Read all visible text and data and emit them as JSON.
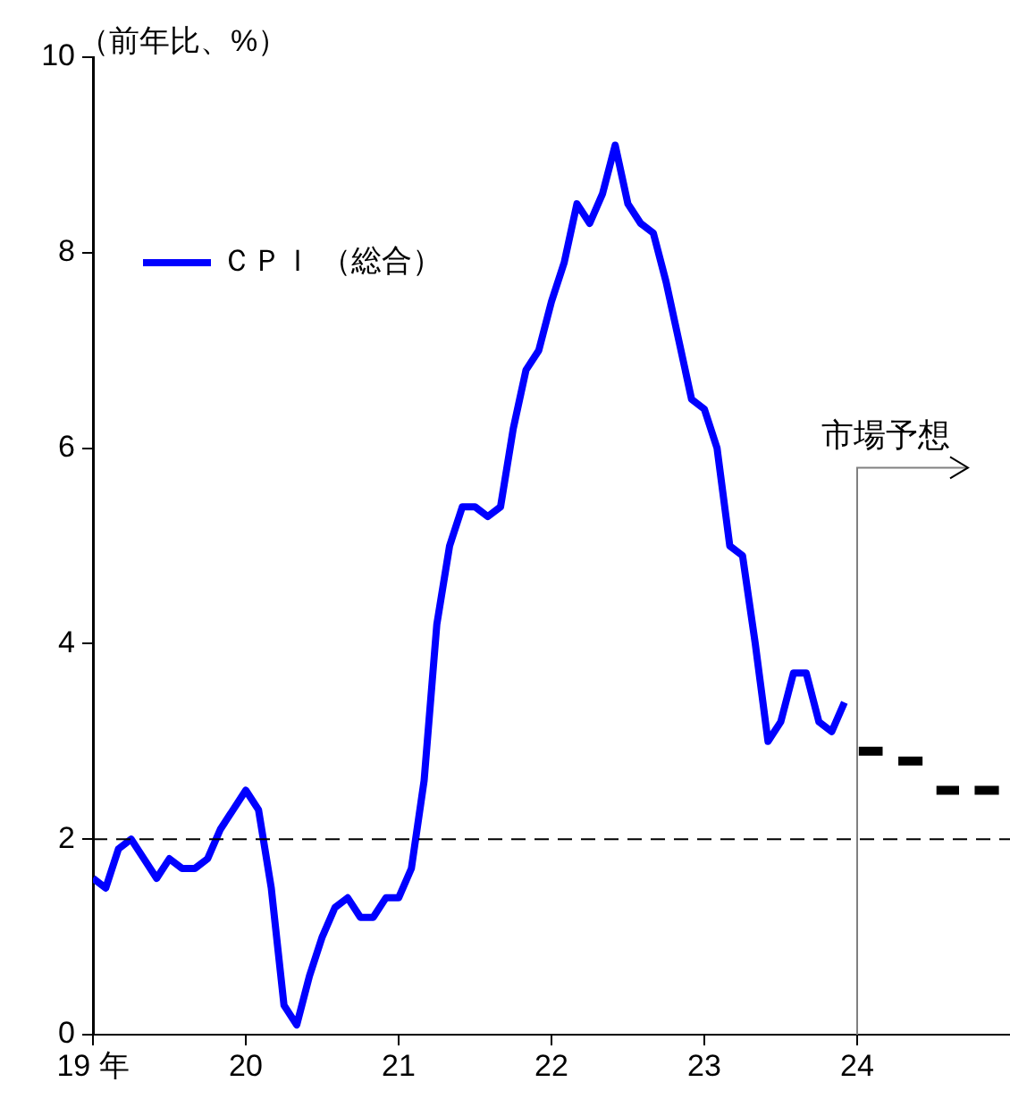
{
  "chart_data": {
    "type": "line",
    "ylabel": "（前年比、%）",
    "legend": "top left",
    "grid": false,
    "marker": "none",
    "line_style": "solid",
    "x": [
      "2019-01",
      "2019-02",
      "2019-03",
      "2019-04",
      "2019-05",
      "2019-06",
      "2019-07",
      "2019-08",
      "2019-09",
      "2019-10",
      "2019-11",
      "2019-12",
      "2020-01",
      "2020-02",
      "2020-03",
      "2020-04",
      "2020-05",
      "2020-06",
      "2020-07",
      "2020-08",
      "2020-09",
      "2020-10",
      "2020-11",
      "2020-12",
      "2021-01",
      "2021-02",
      "2021-03",
      "2021-04",
      "2021-05",
      "2021-06",
      "2021-07",
      "2021-08",
      "2021-09",
      "2021-10",
      "2021-11",
      "2021-12",
      "2022-01",
      "2022-02",
      "2022-03",
      "2022-04",
      "2022-05",
      "2022-06",
      "2022-07",
      "2022-08",
      "2022-09",
      "2022-10",
      "2022-11",
      "2022-12",
      "2023-01",
      "2023-02",
      "2023-03",
      "2023-04",
      "2023-05",
      "2023-06",
      "2023-07",
      "2023-08",
      "2023-09",
      "2023-10",
      "2023-11",
      "2023-12"
    ],
    "series": [
      {
        "name": "ＣＰＩ （総合）",
        "color": "#0000ff",
        "values": [
          1.6,
          1.5,
          1.9,
          2.0,
          1.8,
          1.6,
          1.8,
          1.7,
          1.7,
          1.8,
          2.1,
          2.3,
          2.5,
          2.3,
          1.5,
          0.3,
          0.1,
          0.6,
          1.0,
          1.3,
          1.4,
          1.2,
          1.2,
          1.4,
          1.4,
          1.7,
          2.6,
          4.2,
          5.0,
          5.4,
          5.4,
          5.3,
          5.4,
          6.2,
          6.8,
          7.0,
          7.5,
          7.9,
          8.5,
          8.3,
          8.6,
          9.1,
          8.5,
          8.3,
          8.2,
          7.7,
          7.1,
          6.5,
          6.4,
          6.0,
          5.0,
          4.9,
          4.0,
          3.0,
          3.2,
          3.7,
          3.7,
          3.2,
          3.1,
          3.4
        ]
      },
      {
        "type": "line",
        "color": "#000000",
        "x": [
          "2024-01-05",
          "2024-03-01",
          "2024-03-20",
          "2024-04-08",
          "2024-06-05",
          "2024-06-20",
          "2024-07-08",
          "2024-09-01",
          "2024-09-20",
          "2024-10-08",
          "2024-12-05"
        ],
        "values": [
          2.9,
          2.9,
          null,
          2.8,
          2.8,
          null,
          2.5,
          2.5,
          null,
          2.5,
          2.5
        ]
      }
    ],
    "xlim": [
      "2019-01",
      "2025-01"
    ],
    "xticks": [
      {
        "value": "2019-01",
        "label": "19 年"
      },
      {
        "value": "2020-01",
        "label": "20"
      },
      {
        "value": "2021-01",
        "label": "21"
      },
      {
        "value": "2022-01",
        "label": "22"
      },
      {
        "value": "2023-01",
        "label": "23"
      },
      {
        "value": "2024-01",
        "label": "24"
      }
    ],
    "ylim": [
      0,
      10
    ],
    "yticks": [
      0,
      2,
      4,
      6,
      8,
      10
    ],
    "ref_lines": [
      {
        "axis": "y",
        "value": 2,
        "color": "#000000",
        "line_style": "dashed"
      },
      {
        "axis": "x",
        "value": "2024-01",
        "label": "市場予想",
        "color": "#808080"
      }
    ]
  }
}
